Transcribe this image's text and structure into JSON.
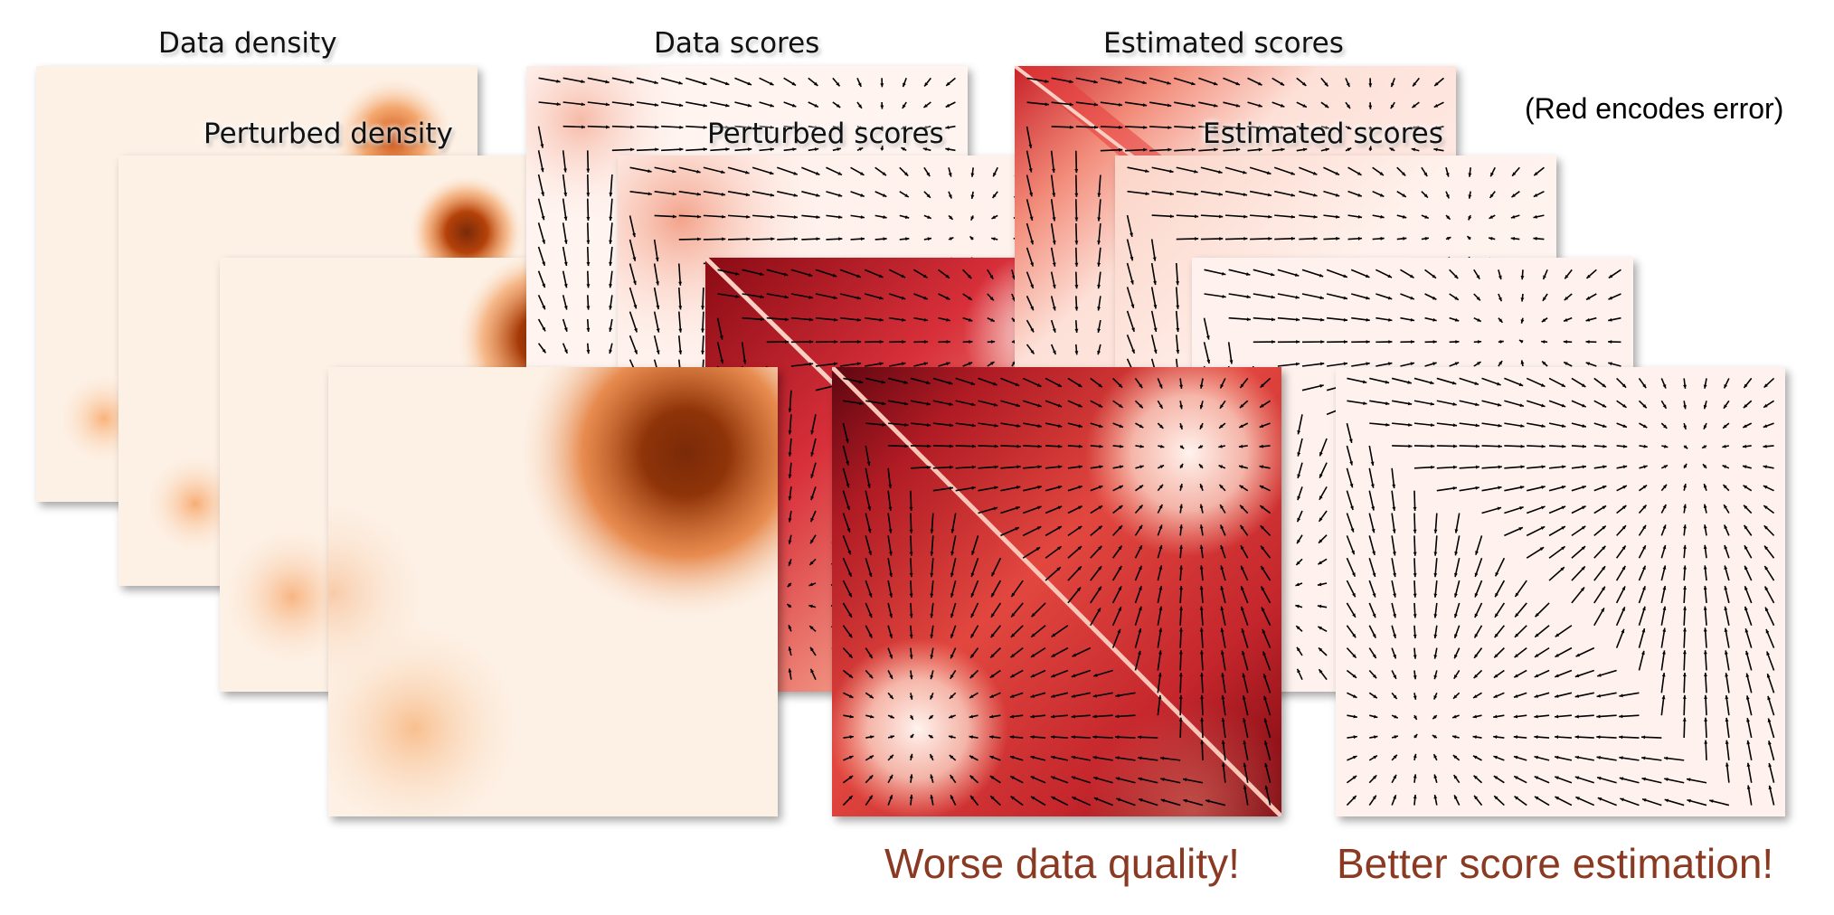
{
  "labels": {
    "data_density": "Data density",
    "perturbed_density": "Perturbed density",
    "data_scores": "Data scores",
    "perturbed_scores": "Perturbed scores",
    "estimated_scores_top": "Estimated scores",
    "estimated_scores_second": "Estimated scores",
    "note": "(Red encodes error)"
  },
  "captions": {
    "worse": "Worse data quality!",
    "better": "Better score estimation!"
  },
  "colors": {
    "density_light": "#fdf1e6",
    "density_dark": "#7a2a08",
    "error_light": "#fff1ec",
    "error_dark": "#8a0b14",
    "caption": "#8a3a22"
  }
}
